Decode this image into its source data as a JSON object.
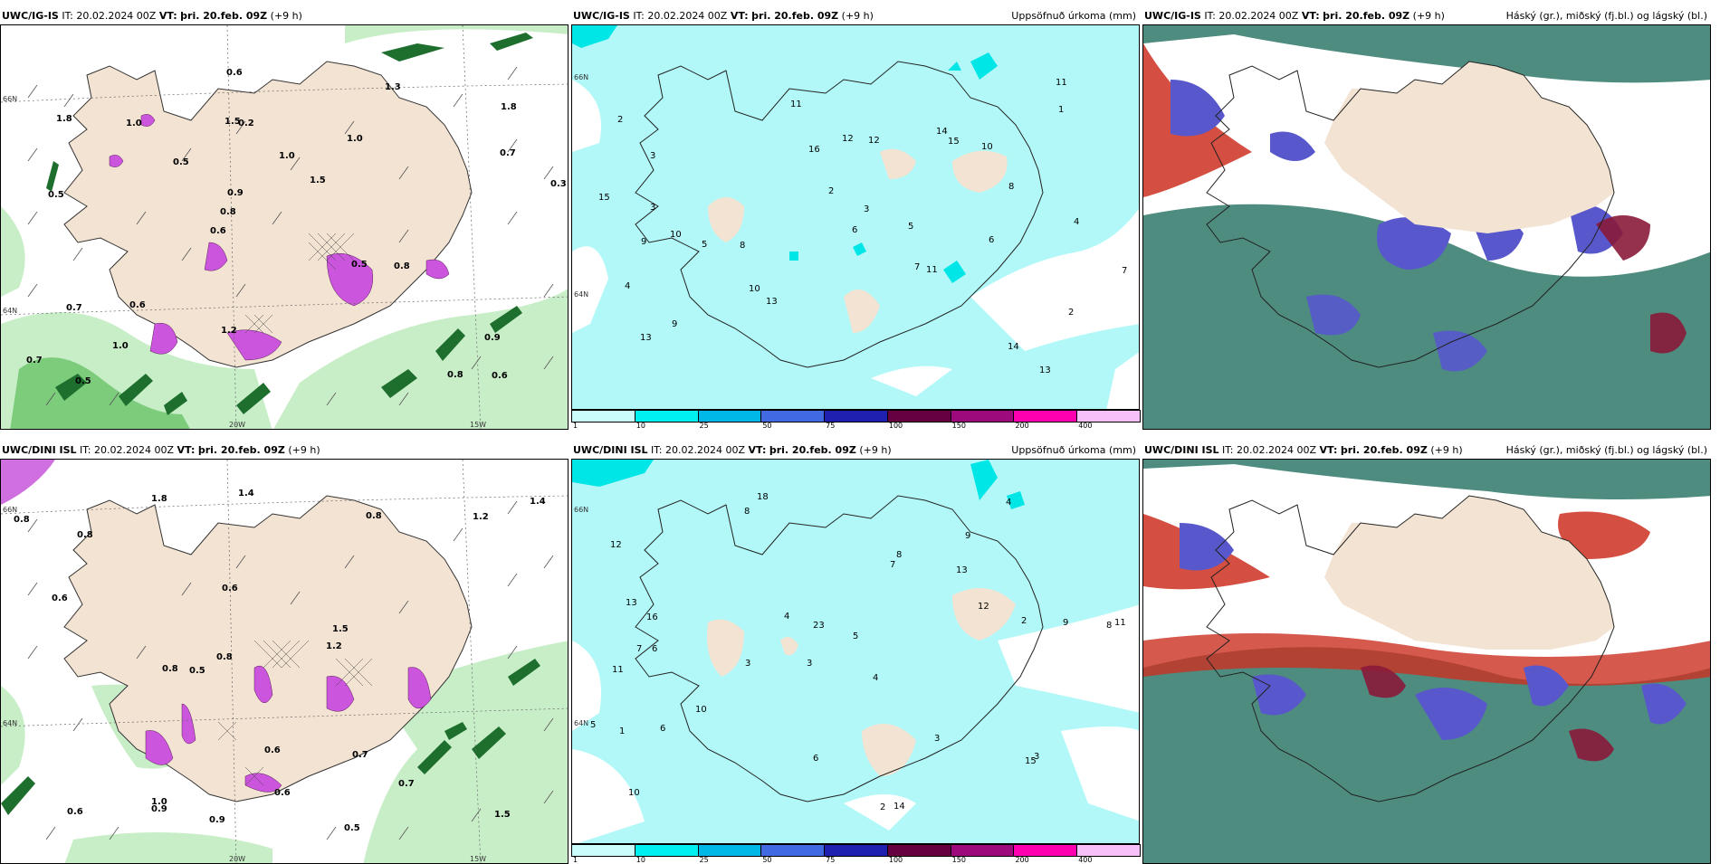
{
  "panels": [
    {
      "model": "UWC/IG-IS",
      "it_label": "IT:",
      "it": "20.02.2024 00Z",
      "vt_label": "VT:",
      "vt": "þri. 20.feb. 09Z",
      "lead": "(+9 h)",
      "title": ""
    },
    {
      "model": "UWC/IG-IS",
      "it_label": "IT:",
      "it": "20.02.2024 00Z",
      "vt_label": "VT:",
      "vt": "þri. 20.feb. 09Z",
      "lead": "(+9 h)",
      "title": "Uppsöfnuð úrkoma (mm)"
    },
    {
      "model": "UWC/IG-IS",
      "it_label": "IT:",
      "it": "20.02.2024 00Z",
      "vt_label": "VT:",
      "vt": "þri. 20.feb. 09Z",
      "lead": "(+9 h)",
      "title": "Háský (gr.), miðský (fj.bl.) og lágský (bl.)"
    },
    {
      "model": "UWC/DINI ISL",
      "it_label": "IT:",
      "it": "20.02.2024 00Z",
      "vt_label": "VT:",
      "vt": "þri. 20.feb. 09Z",
      "lead": "(+9 h)",
      "title": ""
    },
    {
      "model": "UWC/DINI ISL",
      "it_label": "IT:",
      "it": "20.02.2024 00Z",
      "vt_label": "VT:",
      "vt": "þri. 20.feb. 09Z",
      "lead": "(+9 h)",
      "title": "Uppsöfnuð úrkoma (mm)"
    },
    {
      "model": "UWC/DINI ISL",
      "it_label": "IT:",
      "it": "20.02.2024 00Z",
      "vt_label": "VT:",
      "vt": "þri. 20.feb. 09Z",
      "lead": "(+9 h)",
      "title": "Háský (gr.), miðský (fj.bl.) og lágský (bl.)"
    }
  ],
  "axis_labels": {
    "lat66": "66N",
    "lat64": "64N",
    "lon20": "20W",
    "lon15": "15W"
  },
  "colorbar": {
    "ticks": [
      "1",
      "10",
      "25",
      "50",
      "75",
      "100",
      "150",
      "200",
      "400"
    ],
    "colors": [
      "#ccfdfd",
      "#00f0f0",
      "#00b8e8",
      "#4169e1",
      "#2020b0",
      "#660040",
      "#9c0a7c",
      "#ff00b0",
      "#f8c0f8"
    ]
  },
  "colors": {
    "land": "#f3e3d2",
    "wind_green_light": "#c8eec8",
    "wind_green": "#7ccc7c",
    "wind_green_dark": "#1e6e2e",
    "precip_bg": "#b2f8f8",
    "precip_pink": "#cc55dd",
    "cloud_high": "#2e7868",
    "cloud_mid": "#cc3020",
    "cloud_low": "#5858cc"
  },
  "precip_labels_top": [
    "13",
    "10",
    "7",
    "2",
    "2",
    "3",
    "9",
    "8",
    "10",
    "12",
    "15",
    "14",
    "13",
    "11",
    "5",
    "4",
    "6",
    "3",
    "15",
    "13",
    "11",
    "12",
    "8",
    "7",
    "4",
    "3",
    "5",
    "6",
    "2",
    "1",
    "11",
    "9",
    "10",
    "14",
    "16"
  ],
  "precip_labels_bottom": [
    "18",
    "9",
    "8",
    "3",
    "4",
    "6",
    "12",
    "13",
    "11",
    "7",
    "5",
    "10",
    "8",
    "3",
    "2",
    "14",
    "6",
    "4",
    "12",
    "10",
    "16",
    "7",
    "11",
    "9",
    "5",
    "13",
    "23",
    "2",
    "3",
    "1",
    "15",
    "8",
    "6",
    "4",
    "3"
  ],
  "wind_labels_top": [
    "0.6",
    "0.5",
    "1.8",
    "0.6",
    "1.0",
    "0.5",
    "1.5",
    "1.0",
    "0.7",
    "0.5",
    "0.7",
    "1.0",
    "0.2",
    "1.5",
    "0.8",
    "1.8",
    "0.6",
    "0.3",
    "0.5",
    "0.7",
    "0.8",
    "1.2",
    "0.9",
    "1.0",
    "1.3",
    "0.6",
    "0.8",
    "0.9"
  ],
  "wind_labels_bottom": [
    "0.9",
    "0.5",
    "1.0",
    "0.7",
    "1.8",
    "0.8",
    "0.8",
    "1.5",
    "1.4",
    "0.6",
    "1.2",
    "0.6",
    "0.8",
    "0.6",
    "0.8",
    "1.2",
    "0.6",
    "0.9",
    "0.5",
    "0.8",
    "0.7",
    "1.4",
    "1.5",
    "0.6"
  ]
}
